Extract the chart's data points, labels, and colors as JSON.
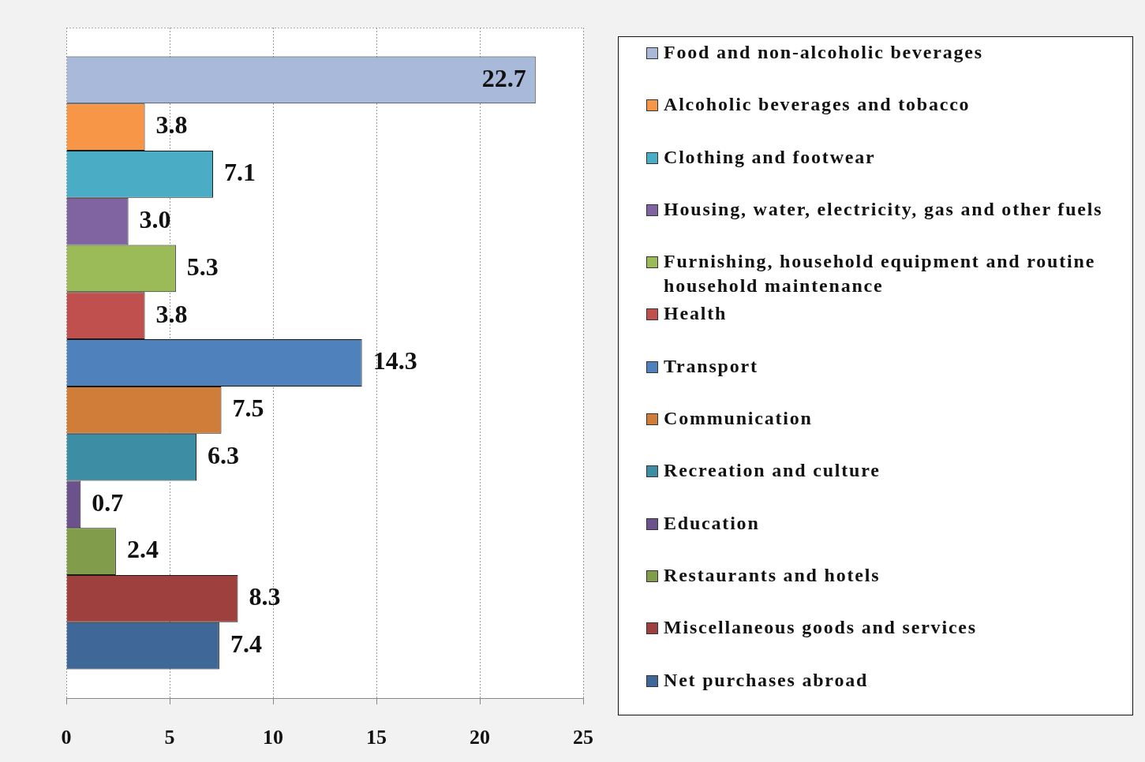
{
  "chart_data": {
    "type": "bar",
    "orientation": "horizontal",
    "categories": [
      null
    ],
    "series": [
      {
        "name": "Food and non-alcoholic beverages",
        "color": "#a9b9d9",
        "values": [
          22.7
        ],
        "value_labels": [
          "22.7"
        ]
      },
      {
        "name": "Alcoholic beverages and tobacco",
        "color": "#f79646",
        "values": [
          3.8
        ],
        "value_labels": [
          "3.8"
        ]
      },
      {
        "name": "Clothing and footwear",
        "color": "#4bacc6",
        "values": [
          7.1
        ],
        "value_labels": [
          "7.1"
        ]
      },
      {
        "name": "Housing, water, electricity, gas and other fuels",
        "color": "#8064a2",
        "values": [
          3.0
        ],
        "value_labels": [
          "3.0"
        ]
      },
      {
        "name": "Furnishing, household equipment and routine household maintenance",
        "color": "#9bbb59",
        "values": [
          5.3
        ],
        "value_labels": [
          "5.3"
        ]
      },
      {
        "name": "Health",
        "color": "#c0504d",
        "values": [
          3.8
        ],
        "value_labels": [
          "3.8"
        ]
      },
      {
        "name": "Transport",
        "color": "#4f81bd",
        "values": [
          14.3
        ],
        "value_labels": [
          "14.3"
        ]
      },
      {
        "name": "Communication",
        "color": "#cf7d39",
        "values": [
          7.5
        ],
        "value_labels": [
          "7.5"
        ]
      },
      {
        "name": "Recreation and culture",
        "color": "#3d8da4",
        "values": [
          6.3
        ],
        "value_labels": [
          "6.3"
        ]
      },
      {
        "name": "Education",
        "color": "#6b528a",
        "values": [
          0.7
        ],
        "value_labels": [
          "0.7"
        ]
      },
      {
        "name": "Restaurants and hotels",
        "color": "#819d4b",
        "values": [
          2.4
        ],
        "value_labels": [
          "2.4"
        ]
      },
      {
        "name": "Miscellaneous goods and services",
        "color": "#9e403d",
        "values": [
          8.3
        ],
        "value_labels": [
          "8.3"
        ]
      },
      {
        "name": "Net purchases abroad",
        "color": "#3f6898",
        "values": [
          7.4
        ],
        "value_labels": [
          "7.4"
        ]
      }
    ],
    "xlim": [
      0,
      25
    ],
    "xticks": [
      0,
      5,
      10,
      15,
      20,
      25
    ],
    "grid": "x",
    "legend": "right"
  }
}
